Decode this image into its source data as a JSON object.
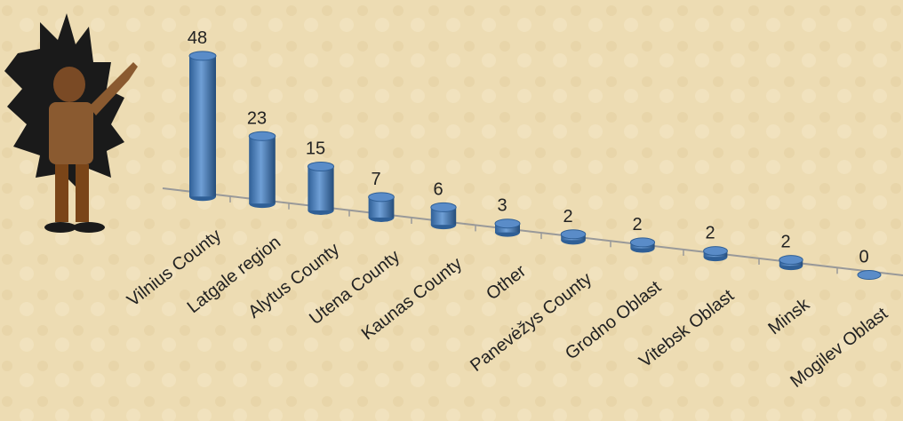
{
  "chart_data": {
    "type": "bar",
    "categories": [
      "Vilnius County",
      "Latgale region",
      "Alytus County",
      "Utena County",
      "Kaunas County",
      "Other",
      "Panevėžys County",
      "Grodno Oblast",
      "Vitebsk Oblast",
      "Minsk",
      "Mogilev Oblast"
    ],
    "values": [
      48,
      23,
      15,
      7,
      6,
      3,
      2,
      2,
      2,
      2,
      0
    ],
    "color": "#4a7ebb"
  }
}
